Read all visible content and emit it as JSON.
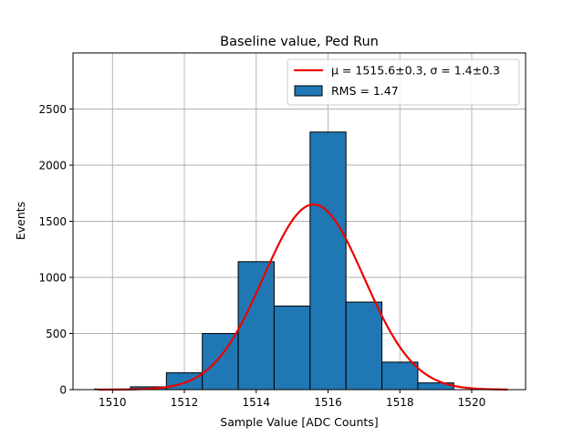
{
  "chart_data": {
    "type": "bar",
    "title": "Baseline value, Ped Run",
    "xlabel": "Sample Value [ADC Counts]",
    "ylabel": "Events",
    "xlim": [
      1508.9,
      1521.5
    ],
    "ylim": [
      0,
      3000
    ],
    "grid": true,
    "xticks": [
      1510,
      1512,
      1514,
      1516,
      1518,
      1520
    ],
    "yticks": [
      0,
      500,
      1000,
      1500,
      2000,
      2500
    ],
    "bin_edges": [
      1509.5,
      1510.5,
      1511.5,
      1512.5,
      1513.5,
      1514.5,
      1515.5,
      1516.5,
      1517.5,
      1518.5,
      1519.5
    ],
    "counts": [
      5,
      25,
      150,
      500,
      1140,
      745,
      2295,
      780,
      245,
      60
    ],
    "fit": {
      "mu": 1515.6,
      "sigma": 1.4,
      "amplitude": 1650,
      "x_range": [
        1509.6,
        1521.0
      ]
    },
    "legend_position": "top-right",
    "legend": [
      {
        "kind": "line",
        "label": "μ = 1515.6±0.3, σ = 1.4±0.3",
        "color": "#ee0000"
      },
      {
        "kind": "patch",
        "label": "RMS = 1.47",
        "color": "#1f77b4"
      }
    ],
    "colors": {
      "bar_fill": "#1f77b4",
      "bar_edge": "#000000",
      "fit_line": "#ee0000",
      "grid": "#b0b0b0"
    }
  }
}
